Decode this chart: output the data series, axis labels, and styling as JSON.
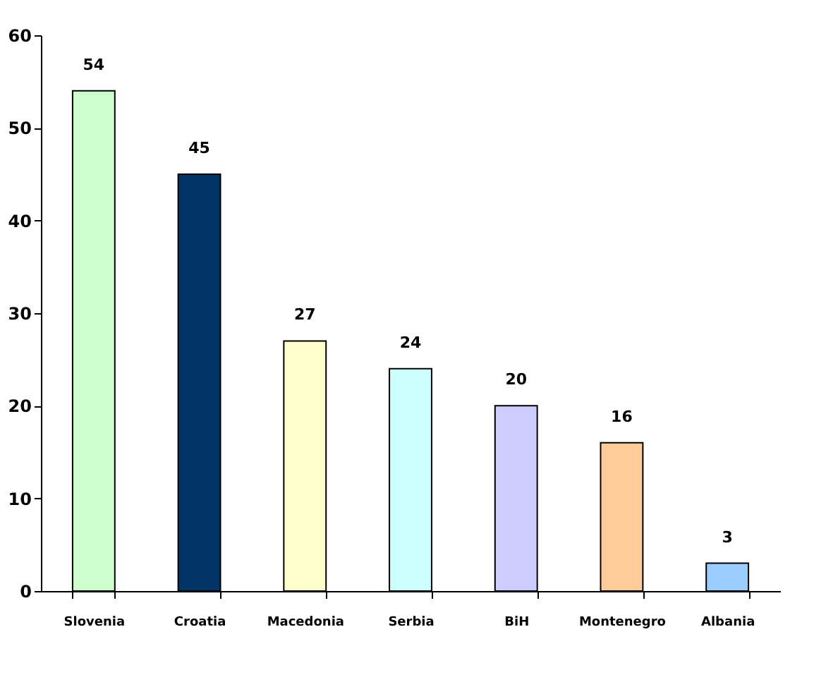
{
  "chart_data": {
    "type": "bar",
    "categories": [
      "Slovenia",
      "Croatia",
      "Macedonia",
      "Serbia",
      "BiH",
      "Montenegro",
      "Albania"
    ],
    "values": [
      54,
      45,
      27,
      24,
      20,
      16,
      3
    ],
    "colors": [
      "#ccffcc",
      "#003366",
      "#ffffcc",
      "#ccffff",
      "#ccccff",
      "#ffcc99",
      "#99ccff"
    ],
    "ylim": [
      0,
      60
    ],
    "yticks": [
      0,
      10,
      20,
      30,
      40,
      50,
      60
    ],
    "data_labels": true,
    "grid": false
  }
}
